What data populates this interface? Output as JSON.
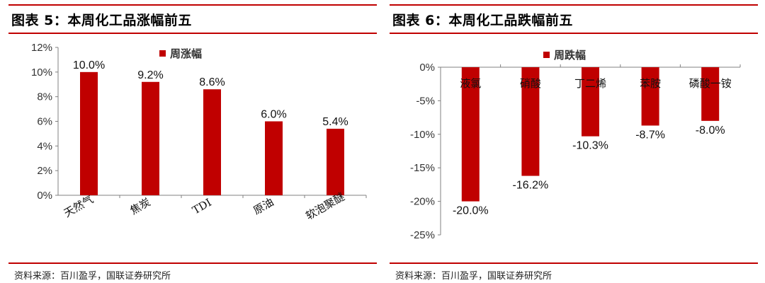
{
  "colors": {
    "bar": "#c00000",
    "rule": "#c00000",
    "axis": "#808080"
  },
  "left": {
    "title": "图表 5：本周化工品涨幅前五",
    "source": "资料来源：百川盈孚，国联证券研究所"
  },
  "right": {
    "title": "图表 6：本周化工品跌幅前五",
    "source": "资料来源：百川盈孚，国联证券研究所"
  },
  "chart_data": [
    {
      "type": "bar",
      "categories": [
        "天然气",
        "焦炭",
        "TDI",
        "原油",
        "软泡聚醚"
      ],
      "series": [
        {
          "name": "周涨幅",
          "values": [
            10.0,
            9.2,
            8.6,
            6.0,
            5.4
          ]
        }
      ],
      "data_labels": [
        "10.0%",
        "9.2%",
        "8.6%",
        "6.0%",
        "5.4%"
      ],
      "yticks": [
        "0%",
        "2%",
        "4%",
        "6%",
        "8%",
        "10%",
        "12%"
      ],
      "ylim": [
        0,
        12
      ],
      "legend": "top-right",
      "grid": false
    },
    {
      "type": "bar",
      "categories": [
        "液氯",
        "硝酸",
        "丁二烯",
        "苯胺",
        "磷酸一铵"
      ],
      "series": [
        {
          "name": "周跌幅",
          "values": [
            -20.0,
            -16.2,
            -10.3,
            -8.7,
            -8.0
          ]
        }
      ],
      "data_labels": [
        "-20.0%",
        "-16.2%",
        "-10.3%",
        "-8.7%",
        "-8.0%"
      ],
      "yticks": [
        "0%",
        "-5%",
        "-10%",
        "-15%",
        "-20%",
        "-25%"
      ],
      "ylim": [
        -25,
        0
      ],
      "legend": "top",
      "grid": false
    }
  ]
}
